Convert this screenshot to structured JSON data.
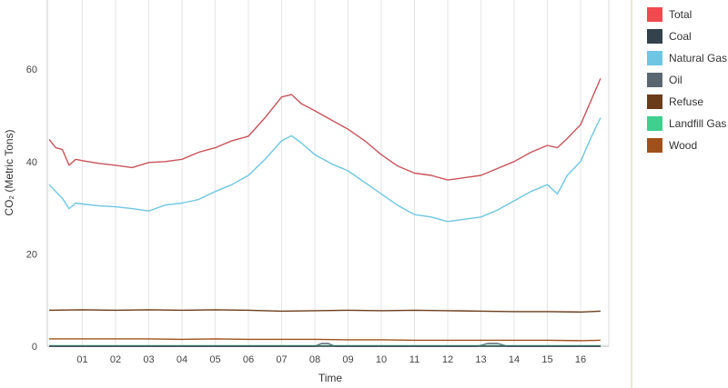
{
  "chart_data": {
    "type": "line",
    "title": "",
    "xlabel": "Time",
    "ylabel": "CO₂ (Metric Tons)",
    "x_ticks": [
      "01",
      "02",
      "03",
      "04",
      "05",
      "06",
      "07",
      "08",
      "09",
      "10",
      "11",
      "12",
      "13",
      "14",
      "15",
      "16"
    ],
    "y_ticks": [
      0,
      20,
      40,
      60
    ],
    "ylim": [
      0,
      75
    ],
    "xlim": [
      0,
      16.6
    ],
    "grid": "vertical",
    "legend_position": "right",
    "series": [
      {
        "name": "Total",
        "color": "#c8545a",
        "x": [
          0.0,
          0.2,
          0.4,
          0.6,
          0.8,
          1.0,
          1.5,
          2.0,
          2.5,
          3.0,
          3.5,
          4.0,
          4.5,
          5.0,
          5.5,
          6.0,
          6.5,
          7.0,
          7.3,
          7.6,
          8.0,
          8.5,
          9.0,
          9.5,
          10.0,
          10.5,
          11.0,
          11.5,
          12.0,
          12.5,
          13.0,
          13.5,
          14.0,
          14.5,
          15.0,
          15.3,
          15.6,
          16.0,
          16.3,
          16.6
        ],
        "values": [
          44.8,
          43,
          42.6,
          39.2,
          40.5,
          40.2,
          39.6,
          39.2,
          38.7,
          39.8,
          40,
          40.5,
          42,
          43,
          44.5,
          45.5,
          49.5,
          54,
          54.5,
          52.5,
          51,
          49,
          47,
          44.5,
          41.5,
          39,
          37.5,
          37,
          36,
          36.5,
          37,
          38.5,
          40,
          42,
          43.5,
          43,
          45,
          48,
          53,
          58
        ]
      },
      {
        "name": "Natural Gas",
        "color": "#6ec6e2",
        "x": [
          0.0,
          0.2,
          0.4,
          0.6,
          0.8,
          1.0,
          1.5,
          2.0,
          2.5,
          3.0,
          3.5,
          4.0,
          4.5,
          5.0,
          5.5,
          6.0,
          6.5,
          7.0,
          7.3,
          7.6,
          8.0,
          8.5,
          9.0,
          9.5,
          10.0,
          10.5,
          11.0,
          11.5,
          12.0,
          12.5,
          13.0,
          13.5,
          14.0,
          14.5,
          15.0,
          15.3,
          15.6,
          16.0,
          16.3,
          16.6
        ],
        "values": [
          35,
          33.5,
          32,
          29.8,
          31,
          30.8,
          30.4,
          30.2,
          29.8,
          29.3,
          30.6,
          31,
          31.8,
          33.5,
          35,
          37,
          40.5,
          44.5,
          45.6,
          44,
          41.5,
          39.5,
          38,
          35.5,
          33,
          30.5,
          28.5,
          28,
          27,
          27.5,
          28,
          29.5,
          31.5,
          33.5,
          35,
          33,
          37,
          40,
          45,
          49.5
        ]
      },
      {
        "name": "Refuse",
        "color": "#6b3c1a",
        "x": [
          0,
          1,
          2,
          3,
          4,
          5,
          6,
          7,
          8,
          9,
          10,
          11,
          12,
          13,
          14,
          15,
          16,
          16.6
        ],
        "values": [
          7.8,
          7.9,
          7.8,
          7.9,
          7.8,
          7.9,
          7.8,
          7.6,
          7.7,
          7.8,
          7.7,
          7.8,
          7.7,
          7.6,
          7.5,
          7.5,
          7.4,
          7.6
        ]
      },
      {
        "name": "Wood",
        "color": "#a0501a",
        "x": [
          0,
          1,
          2,
          3,
          4,
          5,
          6,
          7,
          8,
          9,
          10,
          11,
          12,
          13,
          14,
          15,
          16,
          16.6
        ],
        "values": [
          1.6,
          1.6,
          1.6,
          1.6,
          1.5,
          1.6,
          1.5,
          1.5,
          1.5,
          1.4,
          1.4,
          1.3,
          1.3,
          1.3,
          1.3,
          1.3,
          1.2,
          1.3
        ]
      },
      {
        "name": "Oil",
        "color": "#5b6770",
        "x": [
          0,
          8.0,
          8.2,
          8.4,
          8.6,
          12.9,
          13.2,
          13.5,
          13.8,
          16.6
        ],
        "values": [
          0,
          0,
          0.6,
          0.6,
          0,
          0,
          0.6,
          0.6,
          0,
          0
        ]
      },
      {
        "name": "Landfill Gas",
        "color": "#3fcf8e",
        "x": [
          0,
          16.6
        ],
        "values": [
          0.1,
          0.1
        ]
      },
      {
        "name": "Coal",
        "color": "#34424c",
        "x": [
          0,
          16.6
        ],
        "values": [
          0,
          0
        ]
      }
    ],
    "legend": [
      {
        "name": "Total",
        "color": "#f04a4f"
      },
      {
        "name": "Coal",
        "color": "#34424c"
      },
      {
        "name": "Natural Gas",
        "color": "#6ec6e2"
      },
      {
        "name": "Oil",
        "color": "#5b6770"
      },
      {
        "name": "Refuse",
        "color": "#6b3c1a"
      },
      {
        "name": "Landfill Gas",
        "color": "#3fcf8e"
      },
      {
        "name": "Wood",
        "color": "#a0501a"
      }
    ]
  }
}
